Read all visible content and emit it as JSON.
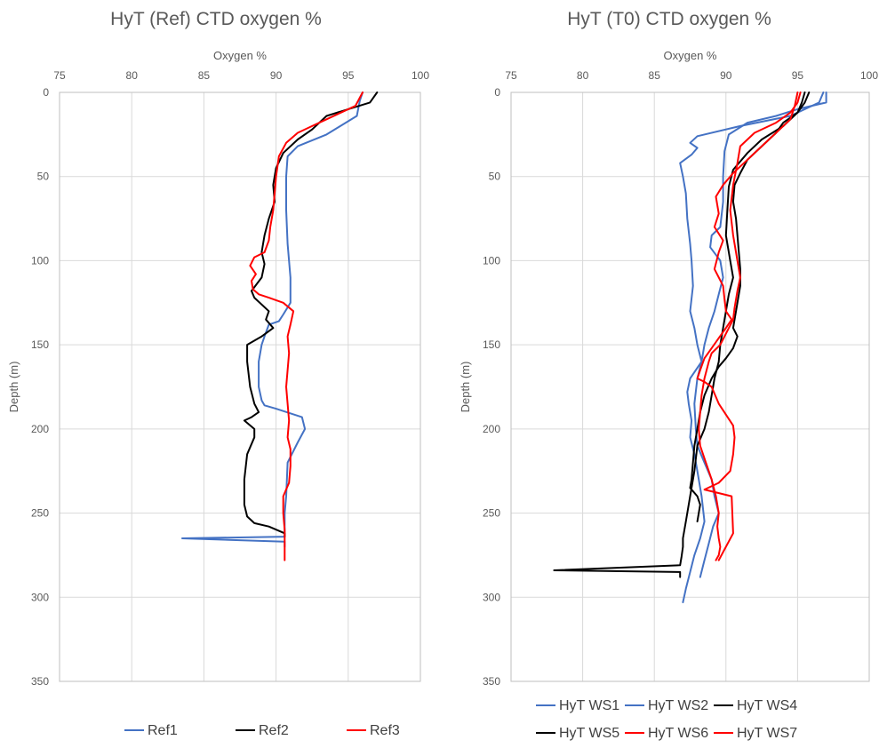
{
  "chart_data": [
    {
      "type": "line",
      "title": "HyT (Ref) CTD oxygen %",
      "xlabel": "Oxygen %",
      "ylabel": "Depth (m)",
      "xlim": [
        75,
        100
      ],
      "ylim": [
        0,
        350
      ],
      "y_reversed": true,
      "x_axis_position": "top",
      "grid": true,
      "legend_position": "bottom",
      "xticks": [
        75,
        80,
        85,
        90,
        95,
        100
      ],
      "yticks": [
        0,
        50,
        100,
        150,
        200,
        250,
        300,
        350
      ],
      "series": [
        {
          "name": "Ref1",
          "color": "#4472C4",
          "x": [
            96.0,
            95.8,
            95.6,
            93.5,
            91.5,
            90.8,
            90.7,
            90.7,
            90.8,
            90.9,
            91.0,
            91.0,
            91.0,
            90.5,
            90.2,
            89.5,
            89.2,
            89.0,
            88.8,
            88.8,
            89.0,
            89.2,
            90.0,
            91.8,
            92.0,
            91.5,
            90.8,
            90.7,
            90.6,
            90.6,
            90.6,
            83.5,
            90.6,
            90.6
          ],
          "y": [
            0,
            5,
            14,
            25,
            32,
            38,
            50,
            70,
            90,
            100,
            110,
            120,
            125,
            132,
            136,
            138,
            145,
            150,
            160,
            175,
            183,
            186,
            188,
            193,
            200,
            208,
            220,
            240,
            250,
            258,
            264,
            265,
            267,
            270
          ]
        },
        {
          "name": "Ref2",
          "color": "#000000",
          "x": [
            97.0,
            96.5,
            95.0,
            93.5,
            92.5,
            91.5,
            90.5,
            90.0,
            89.8,
            89.9,
            89.5,
            89.2,
            89.0,
            89.2,
            89.0,
            88.3,
            88.5,
            89.5,
            89.3,
            89.8,
            89.0,
            88.0,
            88.0,
            88.2,
            88.5,
            88.8,
            88.3,
            87.8,
            88.5,
            88.5,
            88.0,
            87.8,
            87.8,
            88.0,
            88.5,
            89.5,
            90.6,
            90.6
          ],
          "y": [
            0,
            6,
            10,
            14,
            22,
            28,
            36,
            45,
            55,
            65,
            75,
            85,
            95,
            102,
            110,
            118,
            122,
            130,
            135,
            140,
            145,
            150,
            160,
            175,
            185,
            190,
            193,
            195,
            200,
            205,
            215,
            230,
            245,
            252,
            256,
            258,
            262,
            264
          ]
        },
        {
          "name": "Ref3",
          "color": "#FF0000",
          "x": [
            96.0,
            95.5,
            94.5,
            93.5,
            92.5,
            91.5,
            90.7,
            90.2,
            90.0,
            89.9,
            89.8,
            89.6,
            89.5,
            89.2,
            88.5,
            88.2,
            88.6,
            88.3,
            88.4,
            88.8,
            89.5,
            90.5,
            91.2,
            91.0,
            90.8,
            90.9,
            90.8,
            90.7,
            90.8,
            90.9,
            90.8,
            91.0,
            91.0,
            90.9,
            90.5,
            90.5,
            90.6,
            90.6,
            90.6,
            90.6
          ],
          "y": [
            0,
            8,
            12,
            16,
            20,
            24,
            30,
            38,
            50,
            60,
            70,
            80,
            88,
            95,
            98,
            103,
            108,
            112,
            117,
            120,
            122,
            125,
            130,
            138,
            145,
            155,
            165,
            175,
            185,
            195,
            205,
            212,
            222,
            232,
            240,
            250,
            260,
            268,
            274,
            278
          ]
        }
      ]
    },
    {
      "type": "line",
      "title": "HyT (T0) CTD oxygen %",
      "xlabel": "Oxygen %",
      "ylabel": "Depth (m)",
      "xlim": [
        75,
        100
      ],
      "ylim": [
        0,
        350
      ],
      "y_reversed": true,
      "x_axis_position": "top",
      "grid": true,
      "legend_position": "bottom",
      "xticks": [
        75,
        80,
        85,
        90,
        95,
        100
      ],
      "yticks": [
        0,
        50,
        100,
        150,
        200,
        250,
        300,
        350
      ],
      "series": [
        {
          "name": "HyT WS1",
          "color": "#4472C4",
          "x": [
            96.8,
            96.5,
            94.5,
            91.0,
            88.0,
            87.5,
            88.0,
            87.6,
            86.8,
            87.0,
            87.2,
            87.3,
            87.5,
            87.6,
            87.7,
            87.5,
            87.8,
            88.0,
            88.3,
            87.5,
            87.3,
            87.4,
            87.6,
            87.5,
            87.8,
            88.0,
            88.3,
            88.5,
            88.2,
            87.8,
            87.5,
            87.2,
            87.0
          ],
          "y": [
            0,
            6,
            14,
            20,
            26,
            30,
            33,
            37,
            42,
            50,
            60,
            75,
            90,
            100,
            115,
            130,
            140,
            150,
            160,
            170,
            178,
            185,
            195,
            205,
            215,
            225,
            240,
            255,
            265,
            275,
            285,
            295,
            303
          ]
        },
        {
          "name": "HyT WS2",
          "color": "#4472C4",
          "x": [
            97.0,
            97.0,
            95.0,
            93.5,
            91.5,
            90.2,
            89.9,
            89.8,
            89.8,
            89.6,
            89.0,
            88.9,
            89.6,
            89.8,
            89.5,
            89.2,
            88.8,
            88.5,
            88.3,
            88.0,
            87.8,
            87.9,
            88.0,
            88.5,
            89.0,
            89.2,
            89.5,
            89.1,
            88.8,
            88.5,
            88.2
          ],
          "y": [
            0,
            6,
            10,
            14,
            18,
            25,
            35,
            50,
            65,
            80,
            85,
            92,
            100,
            110,
            120,
            130,
            140,
            150,
            160,
            170,
            185,
            200,
            210,
            220,
            230,
            240,
            250,
            258,
            268,
            278,
            288
          ]
        },
        {
          "name": "HyT WS4",
          "color": "#000000",
          "x": [
            95.8,
            95.5,
            95.0,
            94.0,
            93.5,
            92.5,
            91.5,
            91.0,
            90.6,
            90.5,
            90.7,
            90.8,
            90.9,
            91.0,
            91.0,
            90.8,
            90.6,
            90.5,
            90.8,
            90.5,
            90.0,
            89.5,
            89.0,
            88.5,
            88.2,
            88.0,
            87.8,
            87.7,
            87.6,
            87.5,
            88.0,
            88.2,
            88.1,
            88.0
          ],
          "y": [
            0,
            6,
            12,
            18,
            24,
            32,
            40,
            48,
            55,
            65,
            75,
            85,
            95,
            105,
            115,
            125,
            135,
            140,
            145,
            152,
            158,
            163,
            170,
            180,
            190,
            200,
            210,
            220,
            230,
            235,
            240,
            245,
            250,
            255
          ]
        },
        {
          "name": "HyT WS5",
          "color": "#000000",
          "x": [
            95.5,
            95.3,
            95.0,
            94.0,
            92.5,
            91.5,
            90.5,
            90.2,
            90.1,
            90.0,
            90.3,
            90.5,
            90.2,
            90.0,
            89.8,
            89.6,
            89.5,
            89.2,
            89.0,
            88.8,
            88.5,
            88.0,
            87.8,
            87.5,
            87.2,
            87.0,
            87.0,
            86.9,
            86.8,
            78.0,
            86.8,
            86.8
          ],
          "y": [
            0,
            6,
            12,
            20,
            28,
            36,
            46,
            56,
            70,
            85,
            100,
            110,
            120,
            130,
            140,
            150,
            160,
            170,
            180,
            190,
            200,
            210,
            225,
            240,
            255,
            265,
            270,
            276,
            281,
            284,
            285,
            288
          ]
        },
        {
          "name": "HyT WS6",
          "color": "#FF0000",
          "x": [
            95.2,
            95.0,
            94.5,
            93.5,
            92.0,
            91.0,
            90.8,
            90.5,
            90.3,
            90.5,
            90.8,
            91.0,
            90.8,
            90.6,
            90.5,
            89.6,
            89.0,
            88.8,
            88.5,
            88.3,
            88.2,
            88.1,
            88.2,
            88.6,
            89.0,
            89.3,
            89.5,
            89.4,
            89.5,
            89.6,
            89.5,
            89.3
          ],
          "y": [
            0,
            6,
            12,
            18,
            24,
            32,
            42,
            55,
            70,
            85,
            100,
            110,
            118,
            128,
            135,
            150,
            155,
            160,
            170,
            180,
            190,
            200,
            210,
            220,
            230,
            240,
            250,
            258,
            265,
            270,
            275,
            278
          ]
        },
        {
          "name": "HyT WS7",
          "color": "#FF0000",
          "x": [
            95.0,
            94.8,
            94.5,
            93.5,
            92.5,
            91.5,
            90.5,
            89.8,
            89.3,
            89.5,
            89.2,
            89.8,
            89.5,
            89.2,
            89.8,
            89.9,
            90.0,
            90.4,
            90.0,
            89.5,
            89.0,
            88.5,
            88.2,
            88.0,
            88.5,
            89.0,
            89.5,
            90.5,
            90.6,
            90.5,
            90.3,
            89.5,
            88.5,
            90.4,
            90.5,
            89.5
          ],
          "y": [
            0,
            8,
            16,
            24,
            32,
            40,
            48,
            55,
            62,
            72,
            80,
            88,
            95,
            105,
            115,
            123,
            130,
            135,
            140,
            146,
            152,
            158,
            165,
            170,
            172,
            175,
            185,
            198,
            205,
            215,
            225,
            232,
            236,
            240,
            262,
            278
          ]
        }
      ]
    }
  ]
}
